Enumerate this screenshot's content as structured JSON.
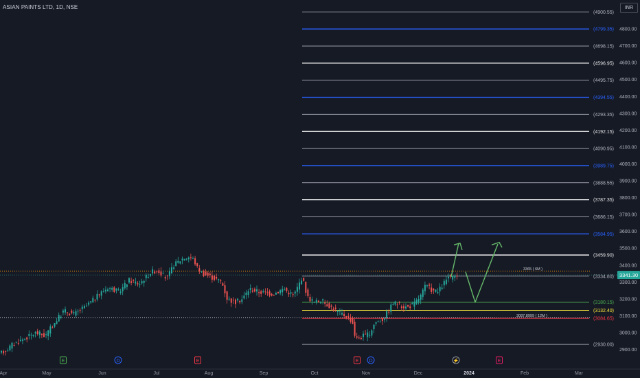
{
  "header": {
    "symbol_title": "ASIAN PAINTS LTD, 1D, NSE",
    "currency": "INR"
  },
  "chart_data": {
    "type": "candlestick",
    "ylim": [
      2900,
      4910
    ],
    "y_ticks": [
      2900,
      3000,
      3100,
      3200,
      3300,
      3400,
      3500,
      3600,
      3700,
      3800,
      3900,
      4000,
      4100,
      4200,
      4300,
      4400,
      4500,
      4600,
      4700,
      4800
    ],
    "x_ticks": [
      "Apr",
      "May",
      "Jun",
      "Jul",
      "Aug",
      "Sep",
      "Oct",
      "Nov",
      "Dec",
      "2024",
      "Feb",
      "Mar"
    ],
    "last_price": {
      "value": 3341.3,
      "label": "3341.30"
    },
    "price_path": [
      [
        0,
        2870
      ],
      [
        12,
        2900
      ],
      [
        20,
        2930
      ],
      [
        35,
        2960
      ],
      [
        55,
        3000
      ],
      [
        68,
        2980
      ],
      [
        80,
        3050
      ],
      [
        95,
        3130
      ],
      [
        110,
        3110
      ],
      [
        125,
        3150
      ],
      [
        140,
        3200
      ],
      [
        150,
        3240
      ],
      [
        160,
        3270
      ],
      [
        175,
        3240
      ],
      [
        190,
        3310
      ],
      [
        205,
        3290
      ],
      [
        222,
        3360
      ],
      [
        232,
        3370
      ],
      [
        245,
        3320
      ],
      [
        255,
        3400
      ],
      [
        268,
        3440
      ],
      [
        278,
        3450
      ],
      [
        285,
        3430
      ],
      [
        288,
        3390
      ],
      [
        298,
        3350
      ],
      [
        310,
        3330
      ],
      [
        325,
        3300
      ],
      [
        333,
        3200
      ],
      [
        345,
        3180
      ],
      [
        355,
        3200
      ],
      [
        365,
        3260
      ],
      [
        380,
        3240
      ],
      [
        400,
        3230
      ],
      [
        415,
        3260
      ],
      [
        430,
        3220
      ],
      [
        442,
        3330
      ],
      [
        450,
        3210
      ],
      [
        460,
        3180
      ],
      [
        470,
        3190
      ],
      [
        485,
        3150
      ],
      [
        495,
        3120
      ],
      [
        505,
        3100
      ],
      [
        515,
        3070
      ],
      [
        520,
        2960
      ],
      [
        530,
        2980
      ],
      [
        540,
        2990
      ],
      [
        548,
        3060
      ],
      [
        560,
        3080
      ],
      [
        575,
        3180
      ],
      [
        585,
        3160
      ],
      [
        595,
        3150
      ],
      [
        605,
        3170
      ],
      [
        615,
        3220
      ],
      [
        622,
        3280
      ],
      [
        632,
        3250
      ],
      [
        640,
        3240
      ],
      [
        648,
        3290
      ],
      [
        655,
        3330
      ],
      [
        662,
        3320
      ],
      [
        666,
        3341
      ]
    ],
    "levels": [
      {
        "value": 4900.55,
        "label": "(4900.55)",
        "color": "#b2b5be",
        "kind": "gray"
      },
      {
        "value": 4799.35,
        "label": "(4799.35)",
        "color": "#2962ff",
        "kind": "blue"
      },
      {
        "value": 4698.15,
        "label": "(4698.15)",
        "color": "#b2b5be",
        "kind": "gray"
      },
      {
        "value": 4596.95,
        "label": "(4596.95)",
        "color": "#ffffff",
        "kind": "white"
      },
      {
        "value": 4495.75,
        "label": "(4495.75)",
        "color": "#b2b5be",
        "kind": "gray"
      },
      {
        "value": 4394.55,
        "label": "(4394.55)",
        "color": "#2962ff",
        "kind": "blue"
      },
      {
        "value": 4293.35,
        "label": "(4293.35)",
        "color": "#b2b5be",
        "kind": "gray"
      },
      {
        "value": 4192.15,
        "label": "(4192.15)",
        "color": "#ffffff",
        "kind": "white"
      },
      {
        "value": 4090.95,
        "label": "(4090.95)",
        "color": "#b2b5be",
        "kind": "gray"
      },
      {
        "value": 3989.75,
        "label": "(3989.75)",
        "color": "#2962ff",
        "kind": "blue"
      },
      {
        "value": 3888.55,
        "label": "(3888.55)",
        "color": "#b2b5be",
        "kind": "gray"
      },
      {
        "value": 3787.35,
        "label": "(3787.35)",
        "color": "#ffffff",
        "kind": "white"
      },
      {
        "value": 3686.15,
        "label": "(3686.15)",
        "color": "#b2b5be",
        "kind": "gray"
      },
      {
        "value": 3584.95,
        "label": "(3584.95)",
        "color": "#2962ff",
        "kind": "blue"
      },
      {
        "value": 3459.9,
        "label": "(3459.90)",
        "color": "#ffffff",
        "kind": "white"
      },
      {
        "value": 3334.8,
        "label": "(3334.80)",
        "color": "#b2b5be",
        "kind": "gray"
      },
      {
        "value": 3180.15,
        "label": "(3180.15)",
        "color": "#4caf50",
        "kind": "green"
      },
      {
        "value": 3132.4,
        "label": "(3132.40)",
        "color": "#ffeb3b",
        "kind": "yellow"
      },
      {
        "value": 3084.65,
        "label": "(3084.65)",
        "color": "#f23645",
        "kind": "red"
      },
      {
        "value": 2930.0,
        "label": "(2930.00)",
        "color": "#b2b5be",
        "kind": "gray"
      }
    ],
    "annotations": [
      {
        "text": "3365 ( 6M )",
        "value": 3365
      },
      {
        "text": "3087.8999 ( 12M )",
        "value": 3087.9
      }
    ],
    "event_markers": [
      {
        "label": "E",
        "color": "#4caf50"
      },
      {
        "label": "D",
        "color": "#2962ff"
      },
      {
        "label": "E",
        "color": "#f23645"
      },
      {
        "label": "E",
        "color": "#f23645"
      },
      {
        "label": "D",
        "color": "#2962ff"
      },
      {
        "label": "⚡",
        "color": "#9598a1"
      },
      {
        "label": "E",
        "color": "#e91e63"
      }
    ],
    "projection_color": "#66bb6a"
  }
}
